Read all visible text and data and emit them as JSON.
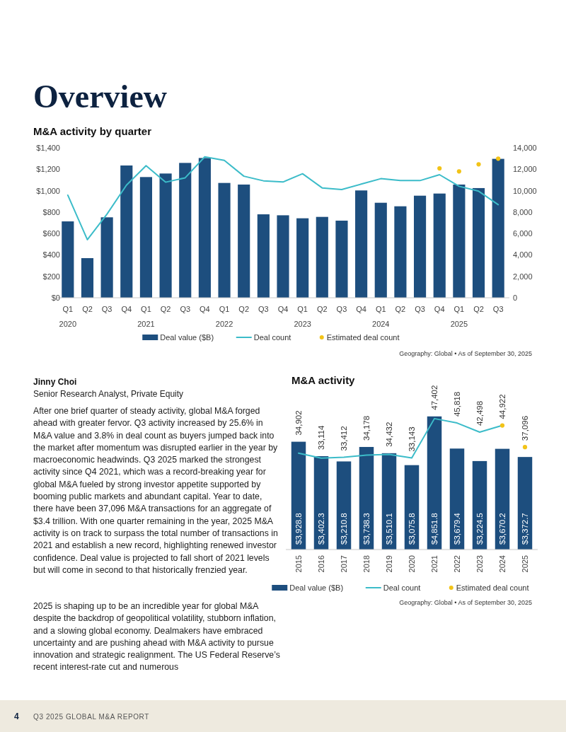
{
  "chart_data": [
    {
      "type": "bar",
      "title": "M&A activity by quarter",
      "categories": [
        "Q1\n2020",
        "Q2",
        "Q3",
        "Q4",
        "Q1\n2021",
        "Q2",
        "Q3",
        "Q4",
        "Q1\n2022",
        "Q2",
        "Q3",
        "Q4",
        "Q1\n2023",
        "Q2",
        "Q3",
        "Q4",
        "Q1\n2024",
        "Q2",
        "Q3",
        "Q4",
        "Q1\n2025",
        "Q2",
        "Q3"
      ],
      "ylim": [
        0,
        1400
      ],
      "yticks": [
        {
          "value": 0,
          "label": "$0"
        },
        {
          "value": 200,
          "label": "$200"
        },
        {
          "value": 400,
          "label": "$400"
        },
        {
          "value": 600,
          "label": "$600"
        },
        {
          "value": 800,
          "label": "$800"
        },
        {
          "value": 1000,
          "label": "$1,000"
        },
        {
          "value": 1200,
          "label": "$1,200"
        },
        {
          "value": 1400,
          "label": "$1,400"
        }
      ],
      "y2lim": [
        0,
        14000
      ],
      "y2ticks": [
        0,
        {
          "value": 2000,
          "label": "2,000"
        },
        {
          "value": 4000,
          "label": "4,000"
        },
        {
          "value": 6000,
          "label": "6,000"
        },
        {
          "value": 8000,
          "label": "8,000"
        },
        {
          "value": 10000,
          "label": "10,000"
        },
        {
          "value": 12000,
          "label": "12,000"
        },
        {
          "value": 14000,
          "label": "14,000"
        }
      ],
      "series": [
        {
          "name": "Deal value ($B)",
          "color": "#1d4e7e",
          "values": [
            713,
            370,
            751,
            1235,
            1127,
            1160,
            1259,
            1305,
            1072,
            1057,
            779,
            770,
            742,
            755,
            720,
            1002,
            887,
            854,
            953,
            973,
            1057,
            1024,
            1297
          ]
        },
        {
          "name": "Deal count",
          "type": "line",
          "axis": "y2",
          "color": "#3cbcc9",
          "values": [
            9580,
            5420,
            7800,
            10520,
            12330,
            10790,
            11200,
            13160,
            12830,
            11350,
            10920,
            10810,
            11580,
            10260,
            10100,
            10610,
            11120,
            10940,
            10940,
            11490,
            10410,
            9950,
            8690
          ]
        },
        {
          "name": "Estimated deal count",
          "type": "scatter",
          "axis": "y2",
          "marker": "circle",
          "color": "#f2c318",
          "values": [
            null,
            null,
            null,
            null,
            null,
            null,
            null,
            null,
            null,
            null,
            null,
            null,
            null,
            null,
            null,
            null,
            null,
            null,
            null,
            12080,
            11800,
            12460,
            12990
          ]
        }
      ],
      "legend": "bottom",
      "annotations": [
        "Geography: Global • As of September 30, 2025"
      ]
    },
    {
      "type": "bar",
      "title": "M&A activity",
      "categories": [
        "2015",
        "2016",
        "2017",
        "2018",
        "2019",
        "2020",
        "2021",
        "2022",
        "2023",
        "2024",
        "2025"
      ],
      "tick_labels": "x",
      "series": [
        {
          "name": "Deal value ($B)",
          "color": "#1d4e7e",
          "values": [
            3928.8,
            3402.3,
            3210.8,
            3738.3,
            3510.1,
            3075.8,
            4851.8,
            3679.4,
            3224.5,
            3670.2,
            3372.7
          ],
          "value_labels": [
            "$3,928.8",
            "$3,402.3",
            "$3,210.8",
            "$3,738.3",
            "$3,510.1",
            "$3,075.8",
            "$4,851.8",
            "$3,679.4",
            "$3,224.5",
            "$3,670.2",
            "$3,372.7"
          ]
        },
        {
          "name": "Deal count",
          "type": "line",
          "axis": "y2",
          "color": "#3cbcc9",
          "values": [
            34902,
            33114,
            33412,
            34178,
            34432,
            33143,
            47402,
            45818,
            42498,
            44922,
            null
          ],
          "value_labels": [
            "34,902",
            "33,114",
            "33,412",
            "34,178",
            "34,432",
            "33,143",
            "47,402",
            "45,818",
            "42,498",
            "44,922",
            null
          ]
        },
        {
          "name": "Estimated deal count",
          "type": "scatter",
          "axis": "y2",
          "marker": "circle",
          "color": "#f2c318",
          "values": [
            null,
            null,
            null,
            null,
            null,
            null,
            null,
            null,
            null,
            44922,
            37096
          ],
          "value_labels": [
            null,
            null,
            null,
            null,
            null,
            null,
            null,
            null,
            null,
            null,
            "37,096"
          ]
        }
      ],
      "legend": "bottom",
      "annotations": [
        "Geography: Global • As of September 30, 2025"
      ]
    },
    {
      "type": "other",
      "annotations": [
        "Overview",
        "Jinny Choi",
        "Senior Research Analyst, Private Equity",
        "After one brief quarter of steady activity, global M&A forged ahead with greater fervor. Q3 activity increased by 25.6% in M&A value and 3.8% in deal count as buyers jumped back into the market after momentum was disrupted earlier in the year by macroeconomic headwinds. Q3 2025 marked the strongest activity since Q4 2021, which was a record-breaking year for global M&A fueled by strong investor appetite supported by booming public markets and abundant capital. Year to date, there have been 37,096 M&A transactions for an aggregate of $3.4 trillion. With one quarter remaining in the year, 2025 M&A activity is on track to surpass the total number of transactions in 2021 and establish a new record, highlighting renewed investor confidence. Deal value is projected to fall short of 2021 levels but will come in second to that historically frenzied year.",
        "2025 is shaping up to be an incredible year for global M&A despite the backdrop of geopolitical volatility, stubborn inflation, and a slowing global economy. Dealmakers have embraced uncertainty and are pushing ahead with M&A activity to pursue innovation and strategic realignment. The US Federal Reserve’s recent interest-rate cut and numerous",
        "4",
        "Q3 2025 GLOBAL M&A REPORT"
      ]
    }
  ]
}
